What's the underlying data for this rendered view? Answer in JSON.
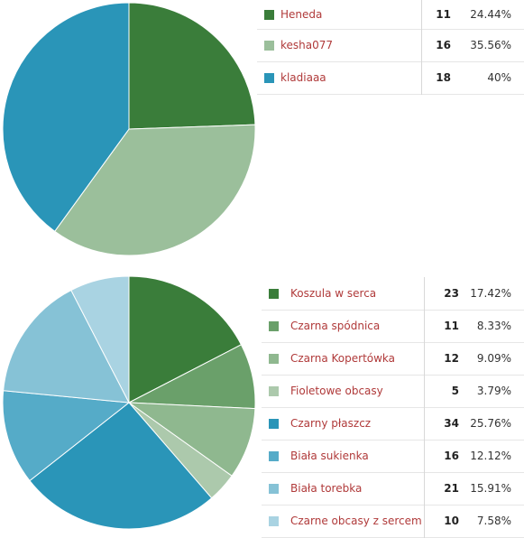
{
  "chart_data": [
    {
      "type": "pie",
      "title": "",
      "categories": [
        "Heneda",
        "kesha077",
        "kladiaaa"
      ],
      "values": [
        11,
        16,
        18
      ],
      "percentages": [
        "24.44%",
        "35.56%",
        "40%"
      ],
      "colors": [
        "#3a7d3a",
        "#9bbf9b",
        "#2a95b8"
      ],
      "legend_placement": "right"
    },
    {
      "type": "pie",
      "title": "",
      "categories": [
        "Koszula w serca",
        "Czarna spódnica",
        "Czarna Kopertówka",
        "Fioletowe obcasy",
        "Czarny płaszcz",
        "Biała sukienka",
        "Biała torebka",
        "Czarne obcasy z sercem"
      ],
      "values": [
        23,
        11,
        12,
        5,
        34,
        16,
        21,
        10
      ],
      "percentages": [
        "17.42%",
        "8.33%",
        "9.09%",
        "3.79%",
        "25.76%",
        "12.12%",
        "15.91%",
        "7.58%"
      ],
      "colors": [
        "#3a7d3a",
        "#6aa06a",
        "#8fb88f",
        "#acc9ac",
        "#2a95b8",
        "#55abc8",
        "#86c2d6",
        "#a9d3e2"
      ],
      "legend_placement": "right"
    }
  ]
}
